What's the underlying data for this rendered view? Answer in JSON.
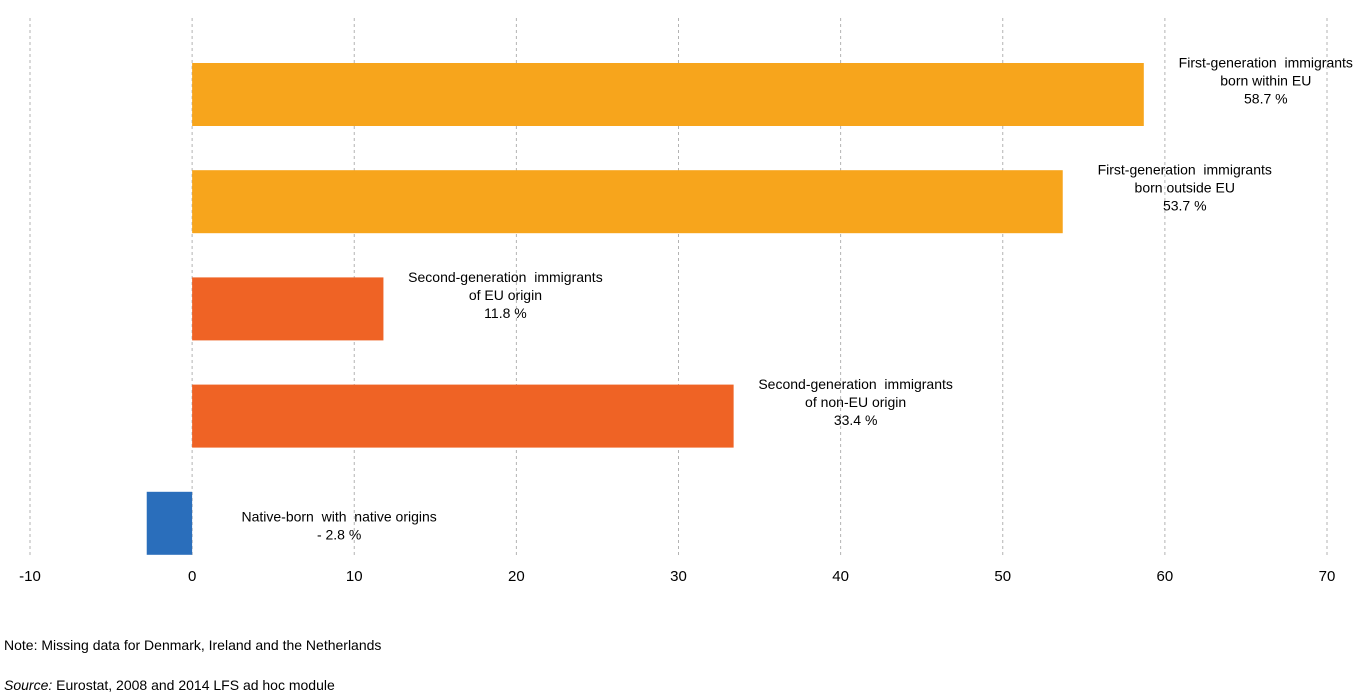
{
  "chart_data": {
    "type": "bar",
    "orientation": "horizontal",
    "xlim": [
      -10,
      70
    ],
    "xticks": [
      "-10",
      "0",
      "10",
      "20",
      "30",
      "40",
      "50",
      "60",
      "70"
    ],
    "grid": true,
    "bars": [
      {
        "label_lines": [
          "First-generation  immigrants",
          "born within EU",
          "58.7 %"
        ],
        "value": 58.7,
        "color": "#f7a51c"
      },
      {
        "label_lines": [
          "First-generation  immigrants",
          "born outside EU",
          "53.7 %"
        ],
        "value": 53.7,
        "color": "#f7a51c"
      },
      {
        "label_lines": [
          "Second-generation  immigrants",
          "of EU origin",
          "11.8 %"
        ],
        "value": 11.8,
        "color": "#ef6325"
      },
      {
        "label_lines": [
          "Second-generation  immigrants",
          "of non-EU origin",
          "33.4 %"
        ],
        "value": 33.4,
        "color": "#ef6325"
      },
      {
        "label_lines": [
          "Native-born  with  native origins",
          "- 2.8 %"
        ],
        "value": -2.8,
        "color": "#2a6ebb"
      }
    ]
  },
  "footer": {
    "note": "Note: Missing data for Denmark, Ireland and the Netherlands",
    "source_label": "Source:",
    "source_text": " Eurostat, 2008 and 2014 LFS ad hoc module"
  }
}
